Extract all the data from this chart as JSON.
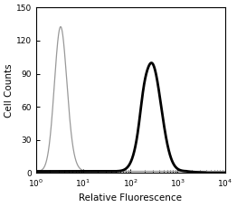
{
  "title": "",
  "xlabel": "Relative Fluorescence",
  "ylabel": "Cell Counts",
  "xlim": [
    1,
    10000
  ],
  "ylim": [
    0,
    150
  ],
  "yticks": [
    0,
    30,
    60,
    90,
    120,
    150
  ],
  "bg_color": "#ffffff",
  "plot_bg_color": "#ffffff",
  "thin_line_color": "#999999",
  "thick_line_color": "#000000",
  "thin_peak_log": 0.52,
  "thin_peak_height": 130,
  "thin_peak_sigma": 0.13,
  "thick_peak_log": 2.45,
  "thick_peak_height": 98,
  "thick_peak_sigma": 0.2,
  "thin_linewidth": 0.9,
  "thick_linewidth": 2.0,
  "baseline": 1.5
}
